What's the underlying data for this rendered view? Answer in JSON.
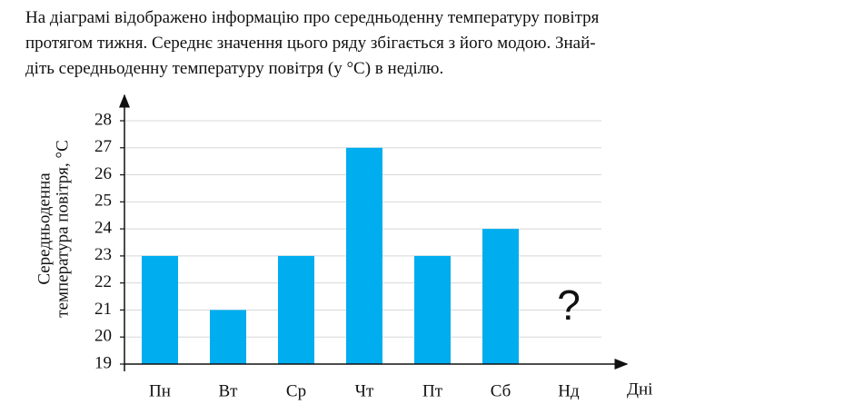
{
  "problem_lines": [
    "На діаграмі відображено інформацію про середньоденну температуру повітря",
    "протягом тижня. Середнє значення цього ряду збігається з його модою. Знай-",
    "діть середньоденну температуру повітря (у °С) в неділю."
  ],
  "chart_data": {
    "type": "bar",
    "categories": [
      "Пн",
      "Вт",
      "Ср",
      "Чт",
      "Пт",
      "Сб",
      "Нд"
    ],
    "values": [
      23,
      21,
      23,
      27,
      23,
      24,
      null
    ],
    "color": "#00adef",
    "ylim": [
      19,
      28
    ],
    "yticks": [
      19,
      20,
      21,
      22,
      23,
      24,
      25,
      26,
      27,
      28
    ],
    "grid": true,
    "xlabel": "Дні",
    "ylabel": [
      "Середньоденна",
      "температура повітря, °С"
    ],
    "annotation": "?"
  }
}
